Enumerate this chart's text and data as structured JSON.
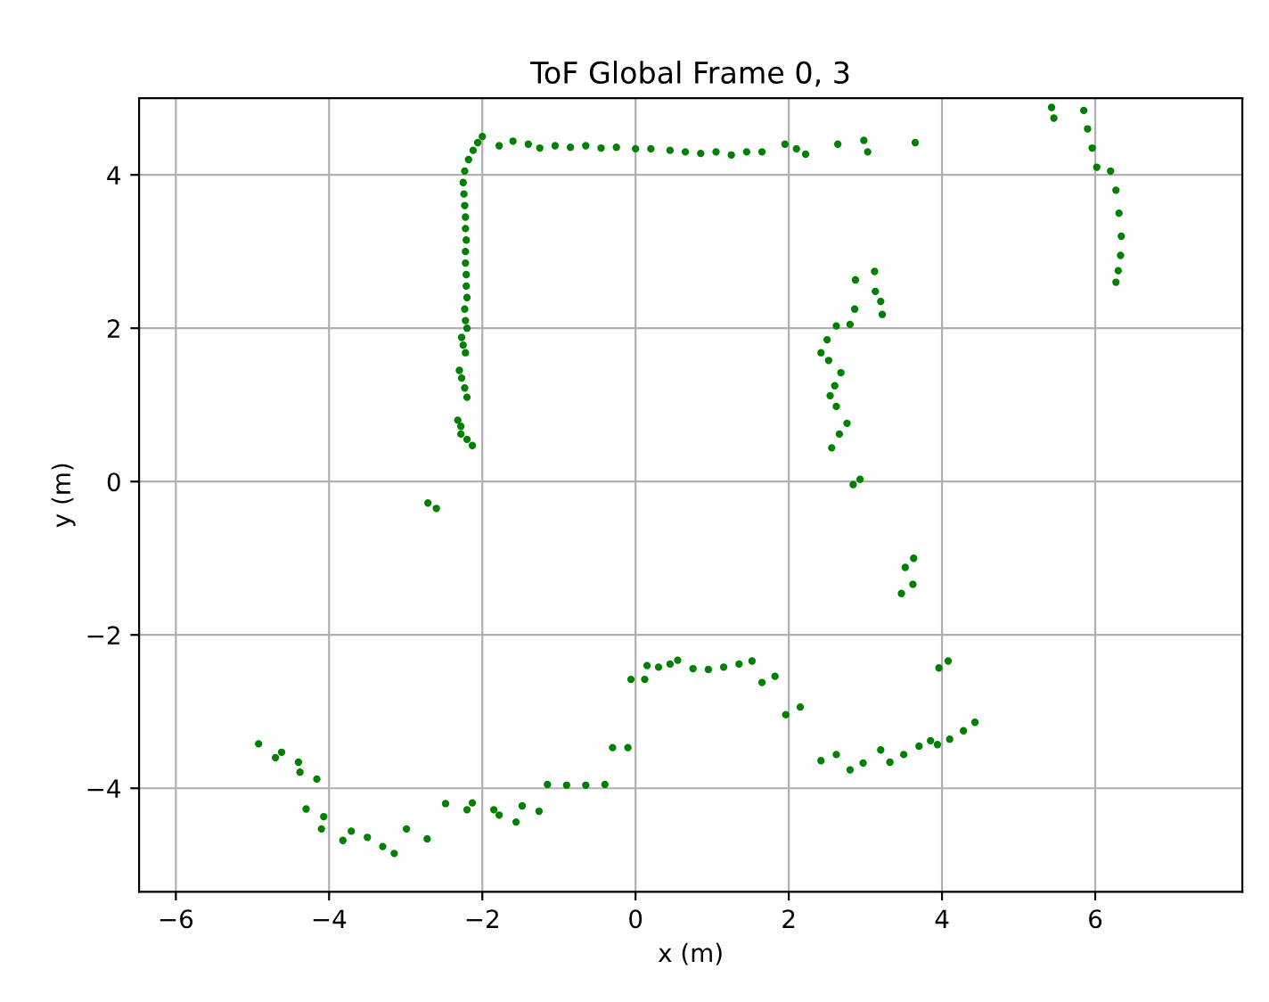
{
  "chart_data": {
    "type": "scatter",
    "title": "ToF Global Frame 0, 3",
    "xlabel": "x (m)",
    "ylabel": "y (m)",
    "xlim": [
      -6.48,
      7.92
    ],
    "ylim": [
      -5.35,
      5.0
    ],
    "xticks": [
      -6,
      -4,
      -2,
      0,
      2,
      4,
      6
    ],
    "yticks": [
      -4,
      -2,
      0,
      2,
      4
    ],
    "grid": true,
    "marker": "circle",
    "x": [
      -2.0,
      -2.06,
      -2.12,
      -2.18,
      -2.23,
      -2.25,
      -2.24,
      -2.23,
      -2.22,
      -2.22,
      -2.21,
      -2.22,
      -2.22,
      -2.21,
      -2.21,
      -2.2,
      -2.23,
      -2.22,
      -2.2,
      -2.27,
      -2.25,
      -2.22,
      -2.3,
      -2.27,
      -2.23,
      -2.2,
      -2.32,
      -2.28,
      -2.28,
      -2.2,
      -2.13,
      -1.78,
      -1.6,
      -1.4,
      -1.25,
      -1.05,
      -0.85,
      -0.65,
      -0.45,
      -0.25,
      0.0,
      0.2,
      0.45,
      0.65,
      0.85,
      1.05,
      1.25,
      1.45,
      1.65,
      1.95,
      2.1,
      2.22,
      2.64,
      2.98,
      3.03,
      3.65,
      5.43,
      5.46,
      5.85,
      5.9,
      5.96,
      6.02,
      6.2,
      6.27,
      6.31,
      6.34,
      6.33,
      6.3,
      6.27,
      2.87,
      3.12,
      3.13,
      3.2,
      3.22,
      2.86,
      2.8,
      2.62,
      2.5,
      2.42,
      2.52,
      2.68,
      2.6,
      2.54,
      2.62,
      2.76,
      2.66,
      2.56,
      2.84,
      2.93,
      3.63,
      3.52,
      3.62,
      3.47,
      4.08,
      3.96,
      2.42,
      2.62,
      2.8,
      2.97,
      3.2,
      3.32,
      3.5,
      3.7,
      3.85,
      3.94,
      4.1,
      4.28,
      4.43,
      1.96,
      2.15,
      1.65,
      1.82,
      0.55,
      0.75,
      0.95,
      1.15,
      1.35,
      1.52,
      0.15,
      0.3,
      0.45,
      -0.06,
      0.12,
      -0.3,
      -0.1,
      -1.15,
      -0.9,
      -0.65,
      -0.4,
      -1.48,
      -1.26,
      -1.78,
      -1.56,
      -2.13,
      -1.85,
      -2.48,
      -2.2,
      -2.99,
      -2.72,
      -3.71,
      -3.5,
      -3.3,
      -3.15,
      -4.1,
      -3.82,
      -4.3,
      -4.07,
      -4.38,
      -4.16,
      -4.62,
      -4.4,
      -4.92,
      -4.7,
      -2.71,
      -2.6
    ],
    "series": [
      {
        "color": "#008000",
        "values": [
          4.5,
          4.42,
          4.32,
          4.2,
          4.05,
          3.9,
          3.75,
          3.6,
          3.45,
          3.3,
          3.15,
          3.0,
          2.85,
          2.7,
          2.55,
          2.4,
          2.25,
          2.1,
          2.0,
          1.88,
          1.78,
          1.68,
          1.45,
          1.35,
          1.22,
          1.1,
          0.8,
          0.72,
          0.62,
          0.55,
          0.47,
          4.38,
          4.44,
          4.4,
          4.35,
          4.38,
          4.36,
          4.38,
          4.35,
          4.36,
          4.34,
          4.34,
          4.32,
          4.3,
          4.28,
          4.3,
          4.26,
          4.3,
          4.3,
          4.4,
          4.34,
          4.27,
          4.4,
          4.45,
          4.3,
          4.42,
          4.88,
          4.74,
          4.84,
          4.6,
          4.35,
          4.1,
          4.05,
          3.8,
          3.5,
          3.2,
          2.95,
          2.75,
          2.6,
          2.63,
          2.74,
          2.48,
          2.35,
          2.18,
          2.25,
          2.05,
          2.03,
          1.85,
          1.68,
          1.58,
          1.42,
          1.25,
          1.12,
          0.98,
          0.76,
          0.62,
          0.44,
          -0.04,
          0.03,
          -1.0,
          -1.12,
          -1.34,
          -1.46,
          -2.34,
          -2.43,
          -3.64,
          -3.56,
          -3.76,
          -3.67,
          -3.5,
          -3.66,
          -3.56,
          -3.45,
          -3.38,
          -3.43,
          -3.36,
          -3.25,
          -3.14,
          -3.04,
          -2.94,
          -2.62,
          -2.54,
          -2.33,
          -2.44,
          -2.45,
          -2.42,
          -2.38,
          -2.34,
          -2.4,
          -2.42,
          -2.38,
          -2.58,
          -2.58,
          -3.47,
          -3.47,
          -3.95,
          -3.96,
          -3.96,
          -3.95,
          -4.23,
          -4.3,
          -4.35,
          -4.44,
          -4.19,
          -4.28,
          -4.2,
          -4.28,
          -4.53,
          -4.66,
          -4.56,
          -4.64,
          -4.76,
          -4.85,
          -4.53,
          -4.68,
          -4.27,
          -4.37,
          -3.79,
          -3.88,
          -3.53,
          -3.66,
          -3.42,
          -3.6,
          -0.28,
          -0.35
        ]
      }
    ]
  }
}
